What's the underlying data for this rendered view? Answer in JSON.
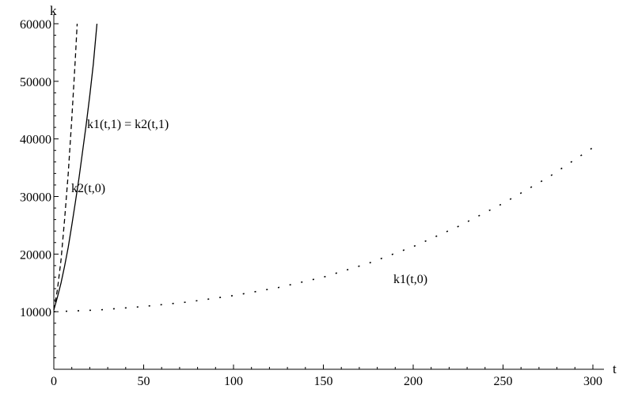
{
  "chart_data": {
    "type": "line",
    "xlabel": "t",
    "ylabel": "k",
    "xlim": [
      0,
      305
    ],
    "ylim": [
      0,
      60000
    ],
    "grid": false,
    "x_ticks": [
      0,
      50,
      100,
      150,
      200,
      250,
      300
    ],
    "y_ticks": [
      10000,
      20000,
      30000,
      40000,
      50000,
      60000
    ],
    "x_tick_labels": [
      "0",
      "50",
      "100",
      "150",
      "200",
      "250",
      "300"
    ],
    "y_tick_labels": [
      "10000",
      "20000",
      "30000",
      "40000",
      "50000",
      "60000"
    ],
    "series": [
      {
        "name": "k1(t,1) = k2(t,1)",
        "style": "solid",
        "color": "#000000",
        "x": [
          0,
          2,
          4,
          6,
          8,
          10,
          12,
          14,
          16,
          18,
          20,
          22,
          24
        ],
        "y": [
          10300,
          12500,
          15000,
          17900,
          21200,
          25000,
          29000,
          33200,
          37800,
          42500,
          47500,
          53000,
          60000
        ]
      },
      {
        "name": "k2(t,0)",
        "style": "dashed",
        "color": "#000000",
        "x": [
          0,
          2,
          4,
          6,
          8,
          10,
          12,
          13
        ],
        "y": [
          10300,
          13800,
          19000,
          26000,
          34000,
          43500,
          54000,
          60000
        ]
      },
      {
        "name": "k1(t,0)",
        "style": "dotted",
        "color": "#000000",
        "x": [
          0,
          25,
          50,
          75,
          100,
          125,
          150,
          175,
          200,
          225,
          250,
          275,
          300
        ],
        "y": [
          10000,
          10300,
          10900,
          11700,
          12800,
          14200,
          16000,
          18400,
          21300,
          24800,
          28800,
          33300,
          38500
        ]
      }
    ],
    "annotations": [
      {
        "text": "k1(t,1) = k2(t,1)",
        "x": 20,
        "y": 42000
      },
      {
        "text": "k2(t,0)",
        "x": 10,
        "y": 31500
      },
      {
        "text": "k1(t,0)",
        "x": 190,
        "y": 14500
      }
    ]
  }
}
